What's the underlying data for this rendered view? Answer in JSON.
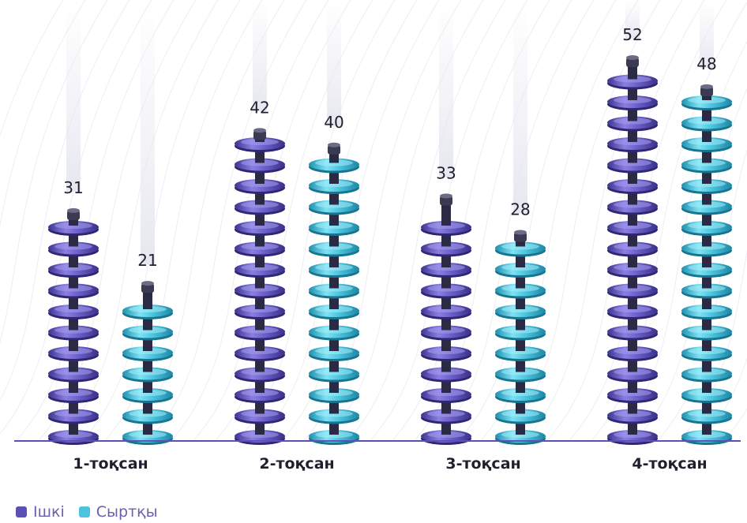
{
  "chart_data": {
    "type": "bar",
    "categories": [
      "1-тоқсан",
      "2-тоқсан",
      "3-тоқсан",
      "4-тоқсан"
    ],
    "series": [
      {
        "name": "Ішкі",
        "values": [
          31,
          42,
          33,
          52
        ],
        "color": "#5b4fb8"
      },
      {
        "name": "Сыртқы",
        "values": [
          21,
          40,
          28,
          48
        ],
        "color": "#3fb8d4"
      }
    ],
    "ylim": [
      0,
      60
    ],
    "grid": false,
    "legend": "bottom-left",
    "bar_style": "stacked insulator discs"
  },
  "colors": {
    "axis": "#5b4fb8",
    "text": "#1f1f2e",
    "legend_text": "#6a5fb0"
  }
}
